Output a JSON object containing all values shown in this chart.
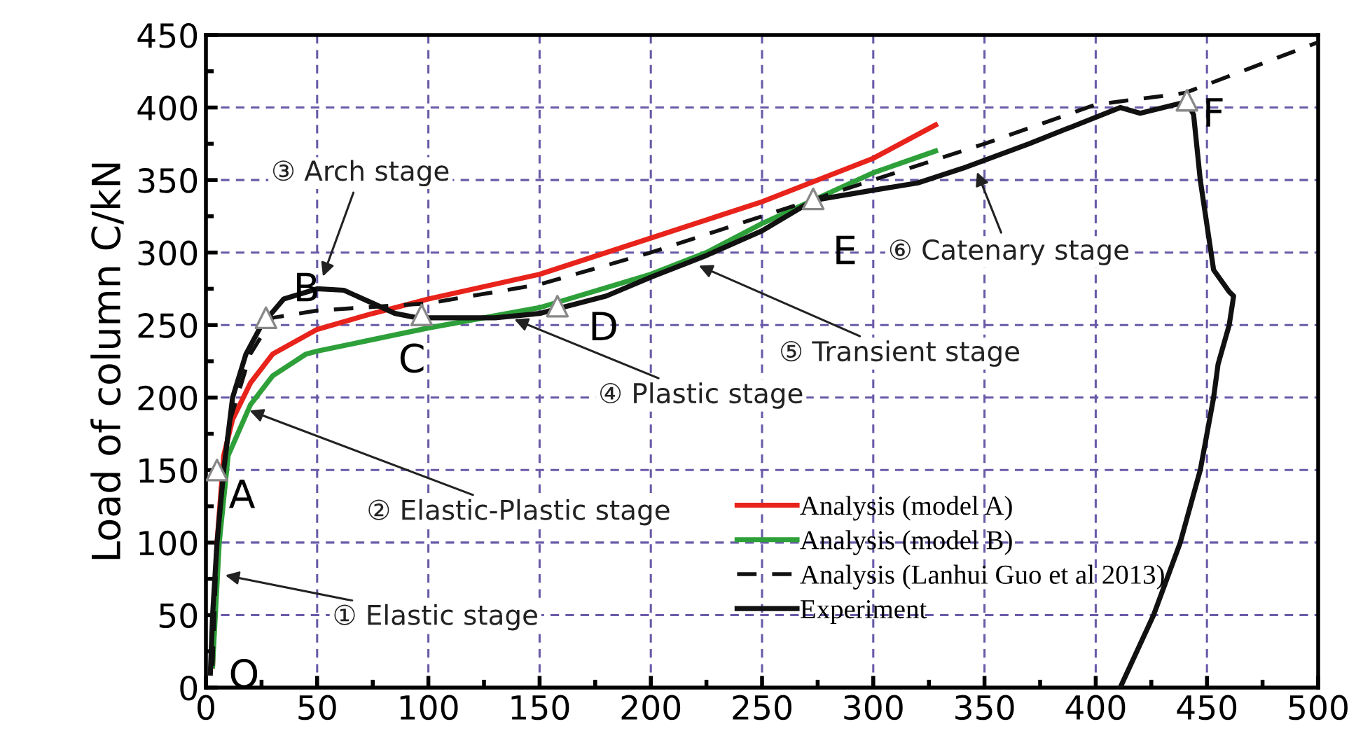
{
  "chart_data": {
    "type": "line",
    "ylabel": "Load of column C/kN",
    "xlim": [
      0,
      500
    ],
    "xticks": [
      0,
      50,
      100,
      150,
      200,
      250,
      300,
      350,
      400,
      450,
      500
    ],
    "ylim": [
      0,
      450
    ],
    "yticks": [
      0,
      50,
      100,
      150,
      200,
      250,
      300,
      350,
      400,
      450
    ],
    "grid": true,
    "legend": "bottom",
    "series": [
      {
        "name": "Analysis (model A)",
        "color": "#e8231b",
        "x": [
          3,
          5,
          8,
          12,
          20,
          30,
          50,
          75,
          100,
          150,
          200,
          250,
          300,
          328
        ],
        "values": [
          15,
          100,
          160,
          185,
          210,
          230,
          247,
          258,
          268,
          285,
          310,
          335,
          365,
          388
        ]
      },
      {
        "name": "Analysis (model B)",
        "color": "#2ea03a",
        "x": [
          3,
          6,
          10,
          20,
          30,
          45,
          50,
          100,
          150,
          200,
          225,
          250,
          300,
          328
        ],
        "values": [
          15,
          100,
          160,
          195,
          215,
          230,
          232,
          248,
          262,
          285,
          300,
          320,
          355,
          370
        ]
      },
      {
        "name": "Analysis (Lanhui Guo et al 2013)",
        "color": "#111111",
        "line_style": "dashed",
        "x": [
          3,
          5,
          10,
          20,
          30,
          50,
          100,
          150,
          200,
          250,
          300,
          350,
          400,
          440,
          500
        ],
        "values": [
          15,
          100,
          180,
          230,
          255,
          260,
          265,
          278,
          300,
          325,
          350,
          375,
          402,
          410,
          445
        ]
      },
      {
        "name": "Experiment",
        "color": "#111111",
        "x": [
          2,
          3,
          5,
          8,
          12,
          18,
          25,
          35,
          50,
          62,
          75,
          85,
          95,
          110,
          130,
          150,
          160,
          180,
          200,
          225,
          250,
          273,
          300,
          320,
          340,
          370,
          411,
          420,
          441,
          444,
          447,
          453,
          460,
          462,
          460,
          455,
          453,
          447,
          438,
          426,
          411
        ],
        "values": [
          10,
          50,
          100,
          150,
          200,
          230,
          250,
          268,
          275,
          274,
          265,
          258,
          255,
          255,
          255,
          258,
          262,
          270,
          283,
          298,
          315,
          336,
          343,
          348,
          358,
          375,
          400,
          396,
          404,
          395,
          350,
          288,
          273,
          270,
          250,
          223,
          200,
          150,
          100,
          50,
          0
        ]
      },
      {
        "type": "scatter",
        "marker": "triangle",
        "color": "#ffffff",
        "x": [
          5,
          27,
          97,
          158,
          273,
          441
        ],
        "values": [
          150,
          255,
          257,
          263,
          337,
          405
        ]
      }
    ],
    "annotations": [
      {
        "text": "O",
        "x": 5,
        "y": 10
      },
      {
        "text": "A",
        "x": 5,
        "y": 150
      },
      {
        "text": "B",
        "x": 27,
        "y": 255
      },
      {
        "text": "C",
        "x": 97,
        "y": 257
      },
      {
        "text": "D",
        "x": 158,
        "y": 263
      },
      {
        "text": "E",
        "x": 273,
        "y": 337
      },
      {
        "text": "F",
        "x": 441,
        "y": 405
      },
      {
        "text": "① Elastic stage",
        "x": 7,
        "y": 78
      },
      {
        "text": "② Elastic-Plastic stage",
        "x": 18,
        "y": 192
      },
      {
        "text": "③ Arch stage",
        "x": 52,
        "y": 281
      },
      {
        "text": "④ Plastic stage",
        "x": 137,
        "y": 255
      },
      {
        "text": "⑤ Transient stage",
        "x": 220,
        "y": 292
      },
      {
        "text": "⑥ Catenary stage",
        "x": 346,
        "y": 358
      }
    ]
  }
}
